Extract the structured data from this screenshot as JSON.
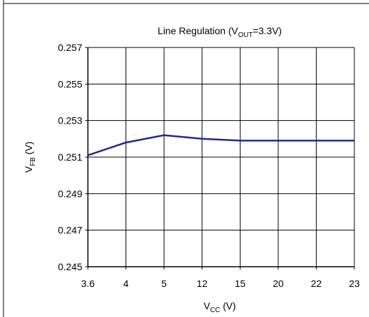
{
  "chart_data": {
    "type": "line",
    "title_parts": {
      "main": "Line Regulation (V",
      "sub": "OUT",
      "tail": "=3.3V)"
    },
    "xlabel_parts": {
      "main": "V",
      "sub": "CC",
      "tail": " (V)"
    },
    "ylabel_parts": {
      "main": "V",
      "sub": "FB",
      "tail": " (V)"
    },
    "categories": [
      "3.6",
      "4",
      "5",
      "12",
      "15",
      "20",
      "22",
      "23"
    ],
    "y_tick_labels": [
      "0.245",
      "0.247",
      "0.249",
      "0.251",
      "0.253",
      "0.255",
      "0.257"
    ],
    "ylim": [
      0.245,
      0.257
    ],
    "grid": true,
    "series": [
      {
        "values": [
          0.2511,
          0.2518,
          0.2522,
          0.252,
          0.2519,
          0.2519,
          0.2519,
          0.2519
        ]
      }
    ],
    "line_color": "#1f2a8c",
    "grid_color": "#000000"
  }
}
